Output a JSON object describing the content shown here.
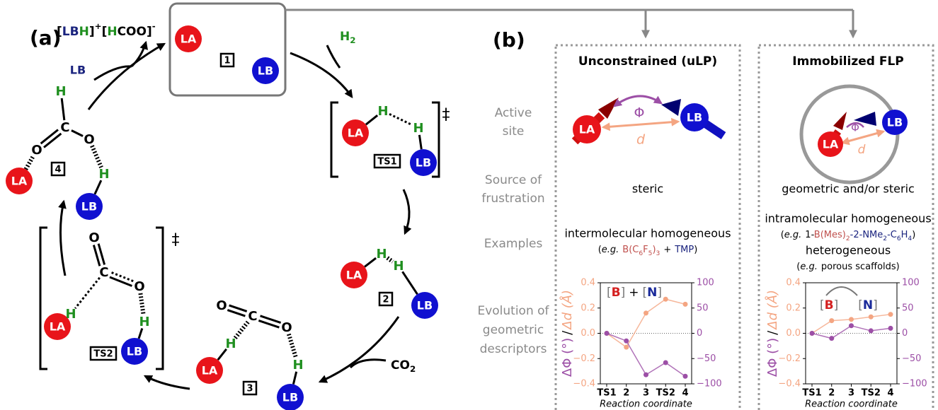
{
  "panel_a": {
    "label": "(a)",
    "product": [
      "[",
      "LB",
      "H",
      "]",
      "+",
      "[",
      "H",
      "COO]",
      "-"
    ],
    "reagents": {
      "lb": "LB",
      "h2": [
        "H",
        "2"
      ],
      "co2": [
        "CO",
        "2"
      ]
    },
    "species": [
      {
        "id": "1",
        "atoms": [
          "LA",
          "LB"
        ]
      },
      {
        "id": "TS1",
        "atoms": [
          "LA",
          "LB",
          "H",
          "H"
        ],
        "ts": "‡"
      },
      {
        "id": "2",
        "atoms": [
          "LA",
          "LB",
          "H",
          "H"
        ]
      },
      {
        "id": "3",
        "atoms": [
          "LA",
          "LB",
          "H",
          "H",
          "O",
          "C",
          "O"
        ]
      },
      {
        "id": "TS2",
        "atoms": [
          "LA",
          "LB",
          "H",
          "H",
          "O",
          "C",
          "O"
        ],
        "ts": "‡"
      },
      {
        "id": "4",
        "atoms": [
          "LA",
          "LB",
          "H",
          "H",
          "O",
          "C",
          "O"
        ]
      }
    ]
  },
  "panel_b": {
    "label": "(b)",
    "columns": [
      "Unconstrained (uLP)",
      "Immobilized FLP"
    ],
    "row_labels": [
      [
        "Active",
        "site"
      ],
      [
        "Source of",
        "frustration"
      ],
      [
        "Examples"
      ],
      [
        "Evolution of",
        "geometric",
        "descriptors"
      ]
    ],
    "active_site": {
      "la": "LA",
      "lb": "LB",
      "phi": "Φ",
      "d": "d"
    },
    "frustration": {
      "left": "steric",
      "right": "geometric and/or steric"
    },
    "examples": {
      "left": [
        {
          "text": "intermolecular homogeneous",
          "note": [
            "(",
            "e.g.",
            "B(C",
            "6",
            "F",
            "5",
            ")",
            "3",
            "+",
            "TMP",
            ")"
          ]
        }
      ],
      "right": [
        {
          "text": "intramolecular homogeneous",
          "note": [
            "(",
            "e.g.",
            "1-",
            "B(Mes)",
            "2",
            "-2-",
            "NMe",
            "2",
            "-C",
            "6",
            "H",
            "4",
            ")"
          ]
        },
        {
          "text": "heterogeneous",
          "note": [
            "(",
            "e.g.",
            "porous scaffolds)"
          ]
        }
      ]
    }
  },
  "chart_data": [
    {
      "type": "line",
      "categories": [
        "TS1",
        "2",
        "3",
        "TS2",
        "4"
      ],
      "xlabel": "Reaction coordinate",
      "ylabel_sep": "/",
      "series": [
        {
          "name": "Δd (Å)",
          "color": "#f4a582",
          "values": [
            0,
            -0.11,
            0.16,
            0.27,
            0.23
          ],
          "axis": "y"
        },
        {
          "name": "ΔΦ (°)",
          "color": "#9c4fa6",
          "values": [
            0,
            -15,
            -82,
            -58,
            -85
          ],
          "axis": "y2"
        }
      ],
      "ylim": [
        -0.4,
        0.4
      ],
      "yticks": [
        {
          "value": -0.4,
          "label": "−0.4"
        },
        {
          "value": -0.2,
          "label": "−0.2"
        },
        {
          "value": 0,
          "label": "0.0"
        },
        0.2,
        0.4
      ],
      "y2lim": [
        -100,
        100
      ],
      "y2ticks": [
        {
          "value": -100,
          "label": "−100"
        },
        {
          "value": -50,
          "label": "−50"
        },
        0,
        50,
        100
      ],
      "zero_line": true,
      "annotation": [
        "[",
        "B",
        "]",
        "+",
        "[",
        "N",
        "]"
      ]
    },
    {
      "type": "line",
      "categories": [
        "TS1",
        "2",
        "3",
        "TS2",
        "4"
      ],
      "xlabel": "Reaction coordinate",
      "ylabel_sep": "/",
      "series": [
        {
          "name": "Δd (Å)",
          "color": "#f4a582",
          "values": [
            0,
            0.1,
            0.11,
            0.13,
            0.15
          ],
          "axis": "y"
        },
        {
          "name": "ΔΦ (°)",
          "color": "#9c4fa6",
          "values": [
            0,
            -10,
            15,
            5,
            10
          ],
          "axis": "y2"
        }
      ],
      "ylim": [
        -0.4,
        0.4
      ],
      "yticks": [
        {
          "value": -0.4,
          "label": "−0.4"
        },
        {
          "value": -0.2,
          "label": "−0.2"
        },
        {
          "value": 0,
          "label": "0.0"
        },
        0.2,
        0.4
      ],
      "y2lim": [
        -100,
        100
      ],
      "y2ticks": [
        {
          "value": -100,
          "label": "−100"
        },
        {
          "value": -50,
          "label": "−50"
        },
        0,
        50,
        100
      ],
      "zero_line": true,
      "annotation": [
        "[",
        "B",
        "]",
        "[",
        "N",
        "]"
      ]
    }
  ]
}
